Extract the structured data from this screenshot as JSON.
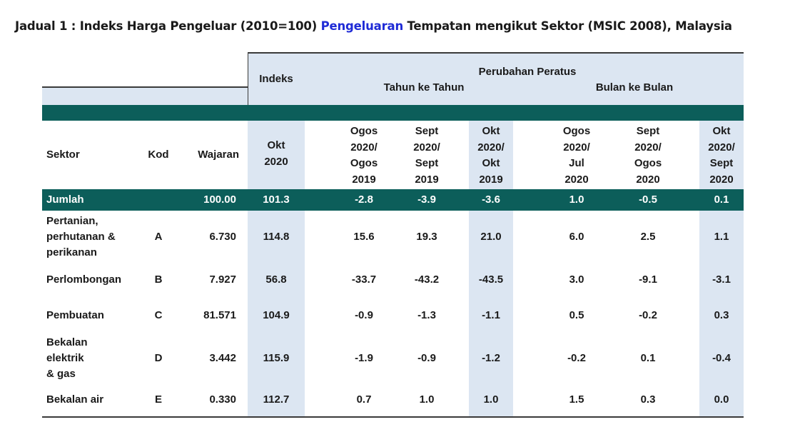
{
  "title": {
    "part1": "Jadual 1 : Indeks Harga Pengeluar (2010=100) ",
    "highlight": "Pengeluaran",
    "part2": " Tempatan mengikut Sektor (MSIC 2008), Malaysia"
  },
  "header": {
    "indeks": "Indeks",
    "perubahan": "Perubahan Peratus",
    "tahun_ke_tahun": "Tahun ke Tahun",
    "bulan_ke_bulan": "Bulan ke Bulan"
  },
  "columns": {
    "sektor": "Sektor",
    "kod": "Kod",
    "wajaran": "Wajaran",
    "okt2020": [
      "Okt",
      "2020"
    ],
    "yoy1": [
      "Ogos",
      "2020/",
      "Ogos",
      "2019"
    ],
    "yoy2": [
      "Sept",
      "2020/",
      "Sept",
      "2019"
    ],
    "yoy3": [
      "Okt",
      "2020/",
      "Okt",
      "2019"
    ],
    "mom1": [
      "Ogos",
      "2020/",
      "Jul",
      "2020"
    ],
    "mom2": [
      "Sept",
      "2020/",
      "Ogos",
      "2020"
    ],
    "mom3": [
      "Okt",
      "2020/",
      "Sept",
      "2020"
    ]
  },
  "total": {
    "sektor": "Jumlah",
    "wajaran": "100.00",
    "indeks": "101.3",
    "yoy": [
      "-2.8",
      "-3.9",
      "-3.6"
    ],
    "mom": [
      "1.0",
      "-0.5",
      "0.1"
    ]
  },
  "rows": [
    {
      "sektor": [
        "Pertanian,",
        "perhutanan &",
        "perikanan"
      ],
      "kod": "A",
      "wajaran": "6.730",
      "indeks": "114.8",
      "yoy": [
        "15.6",
        "19.3",
        "21.0"
      ],
      "mom": [
        "6.0",
        "2.5",
        "1.1"
      ]
    },
    {
      "sektor": [
        "Perlombongan"
      ],
      "kod": "B",
      "wajaran": "7.927",
      "indeks": "56.8",
      "yoy": [
        "-33.7",
        "-43.2",
        "-43.5"
      ],
      "mom": [
        "3.0",
        "-9.1",
        "-3.1"
      ]
    },
    {
      "sektor": [
        "Pembuatan"
      ],
      "kod": "C",
      "wajaran": "81.571",
      "indeks": "104.9",
      "yoy": [
        "-0.9",
        "-1.3",
        "-1.1"
      ],
      "mom": [
        "0.5",
        "-0.2",
        "0.3"
      ]
    },
    {
      "sektor": [
        "Bekalan",
        "elektrik",
        "& gas"
      ],
      "kod": "D",
      "wajaran": "3.442",
      "indeks": "115.9",
      "yoy": [
        "-1.9",
        "-0.9",
        "-1.2"
      ],
      "mom": [
        "-0.2",
        "0.1",
        "-0.4"
      ]
    },
    {
      "sektor": [
        "Bekalan air"
      ],
      "kod": "E",
      "wajaran": "0.330",
      "indeks": "112.7",
      "yoy": [
        "0.7",
        "1.0",
        "1.0"
      ],
      "mom": [
        "1.5",
        "0.3",
        "0.0"
      ]
    }
  ],
  "colors": {
    "teal": "#0c5e5a",
    "light_blue": "#dce6f2",
    "title_highlight": "#1f2bd6"
  }
}
